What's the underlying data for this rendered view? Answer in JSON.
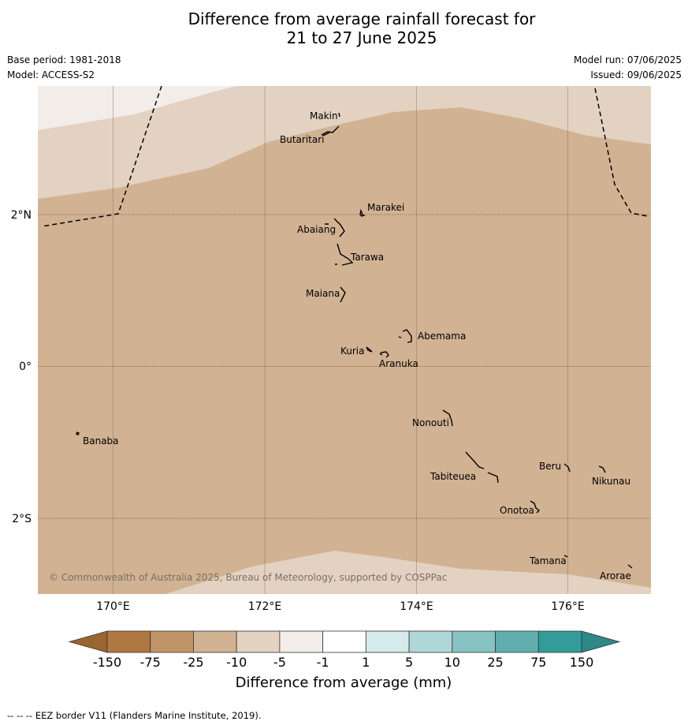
{
  "header": {
    "title_line1": "Difference from average rainfall forecast for",
    "title_line2": "21 to 27 June 2025",
    "base_period": "Base period: 1981-2018",
    "model": "Model: ACCESS-S2",
    "model_run": "Model run: 07/06/2025",
    "issued": "Issued: 09/06/2025"
  },
  "map": {
    "x_ticks": [
      "170°E",
      "172°E",
      "174°E",
      "176°E"
    ],
    "y_ticks": [
      "2°N",
      "0°",
      "2°S"
    ],
    "copyright": "© Commonwealth of Australia 2025, Bureau of Meteorology, supported by COSPPac",
    "islands": [
      "Makin",
      "Butaritari",
      "Marakei",
      "Abaiang",
      "Tarawa",
      "Maiana",
      "Abemama",
      "Kuria",
      "Aranuka",
      "Banaba",
      "Nonouti",
      "Beru",
      "Tabiteuea",
      "Nikunau",
      "Onotoa",
      "Tamana",
      "Arorae"
    ],
    "fill_colors": {
      "-5_to_-1": "#f2ede8",
      "-10_to_-5": "#e3d2c1",
      "-25_to_-10": "#d1b293"
    }
  },
  "colorbar": {
    "labels": [
      "-150",
      "-75",
      "-25",
      "-10",
      "-5",
      "-1",
      "1",
      "5",
      "10",
      "25",
      "75",
      "150"
    ],
    "colors": [
      "#b07841",
      "#c19468",
      "#d1b293",
      "#e3d2c1",
      "#f2ede8",
      "#ffffff",
      "#d5eaea",
      "#afd7d7",
      "#88c3c3",
      "#62aeae",
      "#349b9b"
    ],
    "under_color": "#9a6530",
    "over_color": "#2d8888",
    "xlabel": "Difference from average (mm)"
  },
  "legend_note": "--  --  -- EEZ border V11 (Flanders Marine Institute, 2019)."
}
